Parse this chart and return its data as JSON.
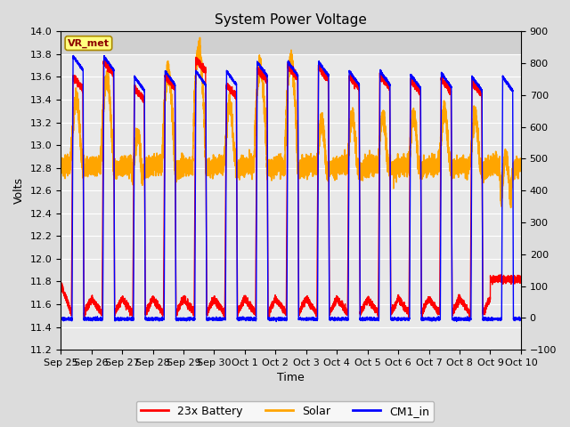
{
  "title": "System Power Voltage",
  "xlabel": "Time",
  "ylabel_left": "Volts",
  "ylim_left": [
    11.2,
    14.0
  ],
  "ylim_right": [
    -100,
    900
  ],
  "background_color": "#dcdcdc",
  "plot_bg_color": "#e8e8e8",
  "plot_top_color": "#d0d0d0",
  "grid_color": "white",
  "annotation_text": "VR_met",
  "annotation_box_color": "#ffff80",
  "annotation_border_color": "#aa8800",
  "x_tick_labels": [
    "Sep 25",
    "Sep 26",
    "Sep 27",
    "Sep 28",
    "Sep 29",
    "Sep 30",
    "Oct 1",
    "Oct 2",
    "Oct 3",
    "Oct 4",
    "Oct 5",
    "Oct 6",
    "Oct 7",
    "Oct 8",
    "Oct 9",
    "Oct 10"
  ],
  "legend_labels": [
    "23x Battery",
    "Solar",
    "CM1_in"
  ],
  "title_fontsize": 11,
  "axis_label_fontsize": 9,
  "tick_fontsize": 8,
  "figsize": [
    6.4,
    4.8
  ],
  "dpi": 100
}
